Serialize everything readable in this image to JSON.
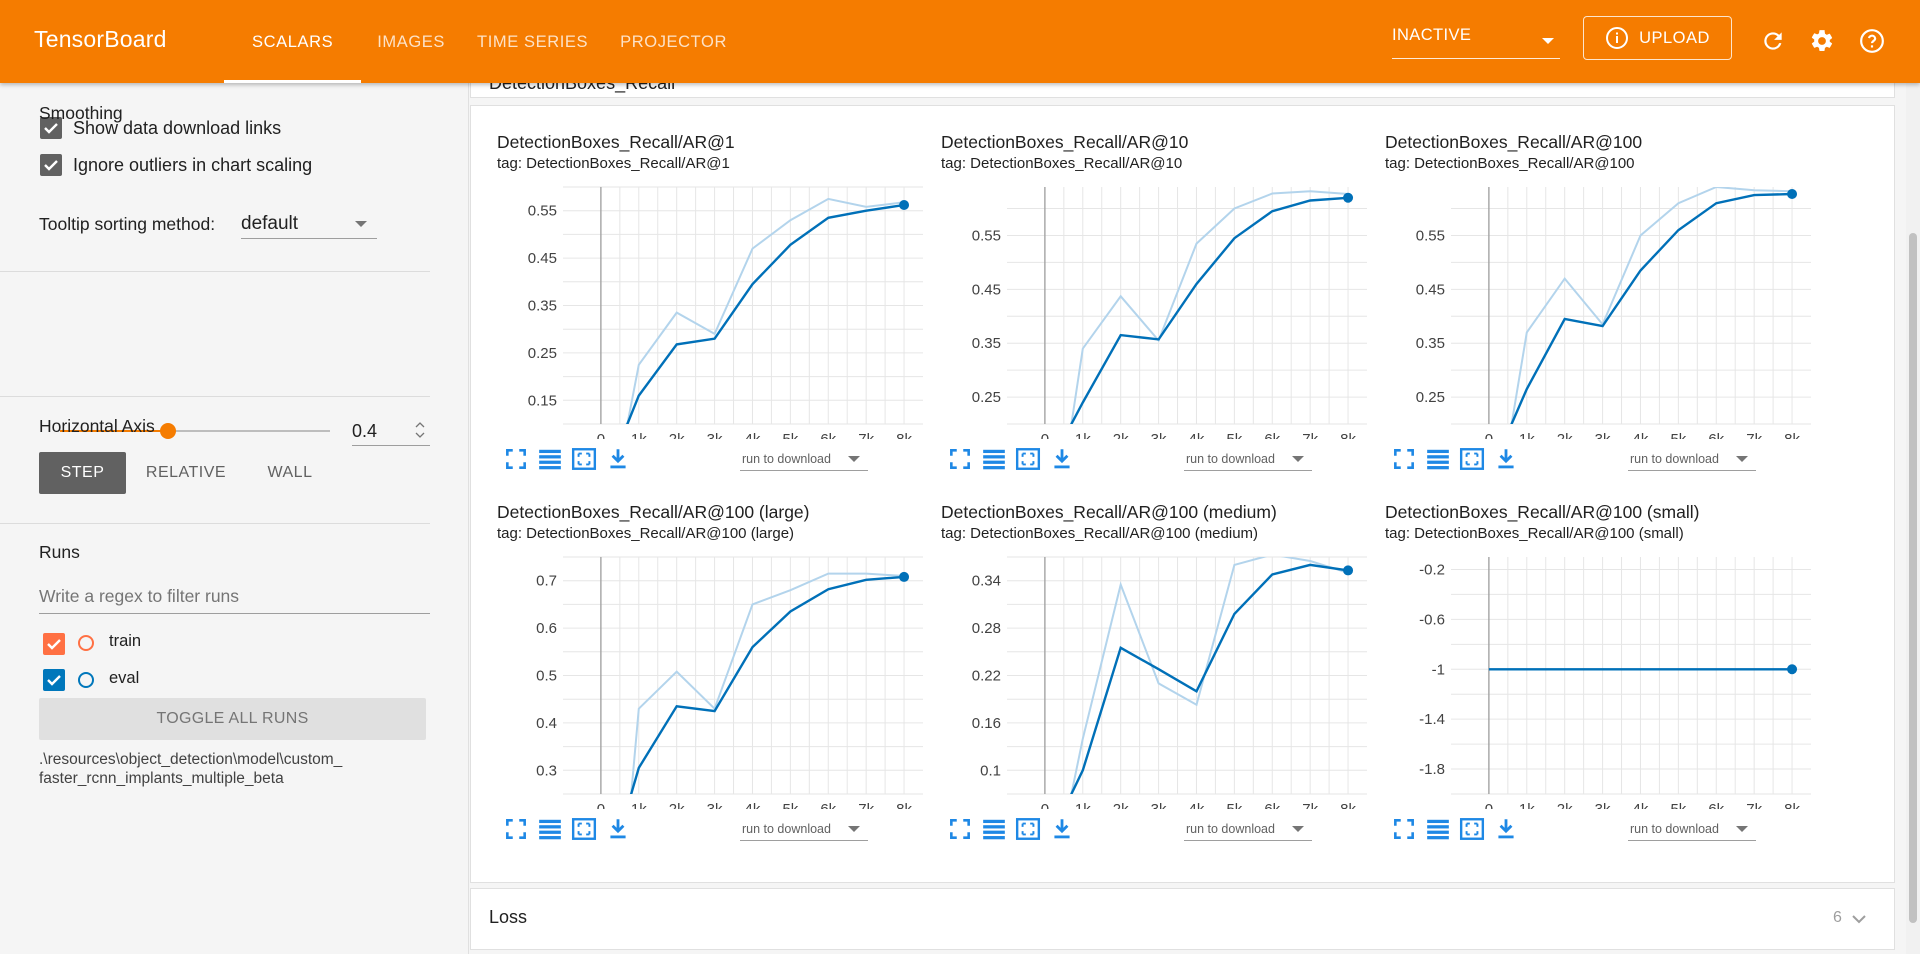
{
  "header": {
    "brand": "TensorBoard",
    "tabs": [
      {
        "label": "SCALARS",
        "active": true
      },
      {
        "label": "IMAGES",
        "active": false
      },
      {
        "label": "TIME SERIES",
        "active": false
      },
      {
        "label": "PROJECTOR",
        "active": false
      }
    ],
    "status_select": "INACTIVE",
    "upload_label": "UPLOAD",
    "icons": [
      "refresh-icon",
      "settings-icon",
      "help-icon"
    ]
  },
  "sidebar": {
    "show_download_links": {
      "label": "Show data download links",
      "checked": true
    },
    "ignore_outliers": {
      "label": "Ignore outliers in chart scaling",
      "checked": true
    },
    "tooltip_sorting": {
      "label": "Tooltip sorting method:",
      "value": "default"
    },
    "smoothing": {
      "label": "Smoothing",
      "value": "0.4",
      "slider_fraction": 0.4
    },
    "horizontal_axis": {
      "label": "Horizontal Axis",
      "options": [
        {
          "label": "STEP",
          "selected": true
        },
        {
          "label": "RELATIVE",
          "selected": false
        },
        {
          "label": "WALL",
          "selected": false
        }
      ]
    },
    "runs": {
      "label": "Runs",
      "filter_placeholder": "Write a regex to filter runs",
      "items": [
        {
          "name": "train",
          "color": "#ff7043",
          "checked": true
        },
        {
          "name": "eval",
          "color": "#0077bb",
          "checked": true
        }
      ],
      "toggle_all_label": "TOGGLE ALL RUNS",
      "path_line1": ".\\resources\\object_detection\\model\\custom_",
      "path_line2": "faster_rcnn_implants_multiple_beta"
    }
  },
  "main": {
    "group_header_partial": "DetectionBoxes_Recall",
    "loss_group": {
      "label": "Loss",
      "count": "6"
    },
    "run_select_label": "run to download",
    "colors": {
      "raw": "#b3d4ec",
      "smoothed": "#0070b8"
    }
  },
  "chart_data": [
    {
      "type": "line",
      "title": "DetectionBoxes_Recall/AR@1",
      "tag": "tag: DetectionBoxes_Recall/AR@1",
      "x_ticks": [
        "0",
        "1k",
        "2k",
        "3k",
        "4k",
        "5k",
        "6k",
        "7k",
        "8k"
      ],
      "y_ticks": [
        0.15,
        0.25,
        0.35,
        0.45,
        0.55
      ],
      "y_tick_labels": [
        "0.15",
        "0.25",
        "0.35",
        "0.45",
        "0.55"
      ],
      "xlim": [
        -1000,
        8500
      ],
      "ylim": [
        0.1,
        0.6
      ],
      "x": [
        0,
        700,
        1000,
        2000,
        3000,
        4000,
        5000,
        6000,
        7000,
        8000
      ],
      "series": [
        {
          "values": [
            0.05,
            0.1,
            0.225,
            0.335,
            0.29,
            0.47,
            0.53,
            0.575,
            0.558,
            0.568
          ]
        },
        {
          "values": [
            0.05,
            0.1,
            0.16,
            0.268,
            0.28,
            0.395,
            0.478,
            0.535,
            0.55,
            0.562
          ]
        }
      ]
    },
    {
      "type": "line",
      "title": "DetectionBoxes_Recall/AR@10",
      "tag": "tag: DetectionBoxes_Recall/AR@10",
      "x_ticks": [
        "0",
        "1k",
        "2k",
        "3k",
        "4k",
        "5k",
        "6k",
        "7k",
        "8k"
      ],
      "y_ticks": [
        0.25,
        0.35,
        0.45,
        0.55
      ],
      "y_tick_labels": [
        "0.25",
        "0.35",
        "0.45",
        "0.55"
      ],
      "xlim": [
        -1000,
        8500
      ],
      "ylim": [
        0.2,
        0.64
      ],
      "x": [
        0,
        700,
        1000,
        2000,
        3000,
        4000,
        5000,
        6000,
        7000,
        8000
      ],
      "series": [
        {
          "values": [
            0.1,
            0.2,
            0.34,
            0.437,
            0.355,
            0.535,
            0.6,
            0.628,
            0.632,
            0.627
          ]
        },
        {
          "values": [
            0.1,
            0.2,
            0.24,
            0.365,
            0.357,
            0.46,
            0.545,
            0.595,
            0.615,
            0.62
          ]
        }
      ]
    },
    {
      "type": "line",
      "title": "DetectionBoxes_Recall/AR@100",
      "tag": "tag: DetectionBoxes_Recall/AR@100",
      "x_ticks": [
        "0",
        "1k",
        "2k",
        "3k",
        "4k",
        "5k",
        "6k",
        "7k",
        "8k"
      ],
      "y_ticks": [
        0.25,
        0.35,
        0.45,
        0.55
      ],
      "y_tick_labels": [
        "0.25",
        "0.35",
        "0.45",
        "0.55"
      ],
      "xlim": [
        -1000,
        8500
      ],
      "ylim": [
        0.2,
        0.64
      ],
      "x": [
        0,
        600,
        1000,
        2000,
        3000,
        4000,
        5000,
        6000,
        7000,
        8000
      ],
      "series": [
        {
          "values": [
            0.1,
            0.2,
            0.37,
            0.47,
            0.385,
            0.55,
            0.61,
            0.64,
            0.634,
            0.632
          ]
        },
        {
          "values": [
            0.1,
            0.2,
            0.265,
            0.395,
            0.382,
            0.485,
            0.56,
            0.61,
            0.625,
            0.627
          ]
        }
      ]
    },
    {
      "type": "line",
      "title": "DetectionBoxes_Recall/AR@100 (large)",
      "tag": "tag: DetectionBoxes_Recall/AR@100 (large)",
      "x_ticks": [
        "0",
        "1k",
        "2k",
        "3k",
        "4k",
        "5k",
        "6k",
        "7k",
        "8k"
      ],
      "y_ticks": [
        0.3,
        0.4,
        0.5,
        0.6,
        0.7
      ],
      "y_tick_labels": [
        "0.3",
        "0.4",
        "0.5",
        "0.6",
        "0.7"
      ],
      "xlim": [
        -1000,
        8500
      ],
      "ylim": [
        0.25,
        0.75
      ],
      "x": [
        0,
        800,
        1000,
        2000,
        3000,
        4000,
        5000,
        6000,
        7000,
        8000
      ],
      "series": [
        {
          "values": [
            0.15,
            0.25,
            0.43,
            0.508,
            0.43,
            0.65,
            0.68,
            0.715,
            0.715,
            0.71
          ]
        },
        {
          "values": [
            0.15,
            0.25,
            0.305,
            0.435,
            0.425,
            0.56,
            0.635,
            0.682,
            0.702,
            0.708
          ]
        }
      ]
    },
    {
      "type": "line",
      "title": "DetectionBoxes_Recall/AR@100 (medium)",
      "tag": "tag: DetectionBoxes_Recall/AR@100 (medium)",
      "x_ticks": [
        "0",
        "1k",
        "2k",
        "3k",
        "4k",
        "5k",
        "6k",
        "7k",
        "8k"
      ],
      "y_ticks": [
        0.1,
        0.16,
        0.22,
        0.28,
        0.34
      ],
      "y_tick_labels": [
        "0.1",
        "0.16",
        "0.22",
        "0.28",
        "0.34"
      ],
      "xlim": [
        -1000,
        8500
      ],
      "ylim": [
        0.07,
        0.37
      ],
      "x": [
        0,
        700,
        1000,
        2000,
        3000,
        4000,
        5000,
        6000,
        7000,
        8000
      ],
      "series": [
        {
          "values": [
            0.0,
            0.07,
            0.14,
            0.335,
            0.21,
            0.183,
            0.36,
            0.373,
            0.365,
            0.35
          ]
        },
        {
          "values": [
            0.0,
            0.07,
            0.1,
            0.255,
            0.228,
            0.2,
            0.298,
            0.348,
            0.36,
            0.353
          ]
        }
      ]
    },
    {
      "type": "line",
      "title": "DetectionBoxes_Recall/AR@100 (small)",
      "tag": "tag: DetectionBoxes_Recall/AR@100 (small)",
      "x_ticks": [
        "0",
        "1k",
        "2k",
        "3k",
        "4k",
        "5k",
        "6k",
        "7k",
        "8k"
      ],
      "y_ticks": [
        -1.8,
        -1.4,
        -1,
        -0.6,
        -0.2
      ],
      "y_tick_labels": [
        "-1.8",
        "-1.4",
        "-1",
        "-0.6",
        "-0.2"
      ],
      "xlim": [
        -1000,
        8500
      ],
      "ylim": [
        -2.0,
        -0.1
      ],
      "x": [
        0,
        1000,
        2000,
        3000,
        4000,
        5000,
        6000,
        7000,
        8000
      ],
      "series": [
        {
          "values": [
            -1,
            -1,
            -1,
            -1,
            -1,
            -1,
            -1,
            -1,
            -1
          ]
        },
        {
          "values": [
            -1,
            -1,
            -1,
            -1,
            -1,
            -1,
            -1,
            -1,
            -1
          ]
        }
      ]
    }
  ]
}
